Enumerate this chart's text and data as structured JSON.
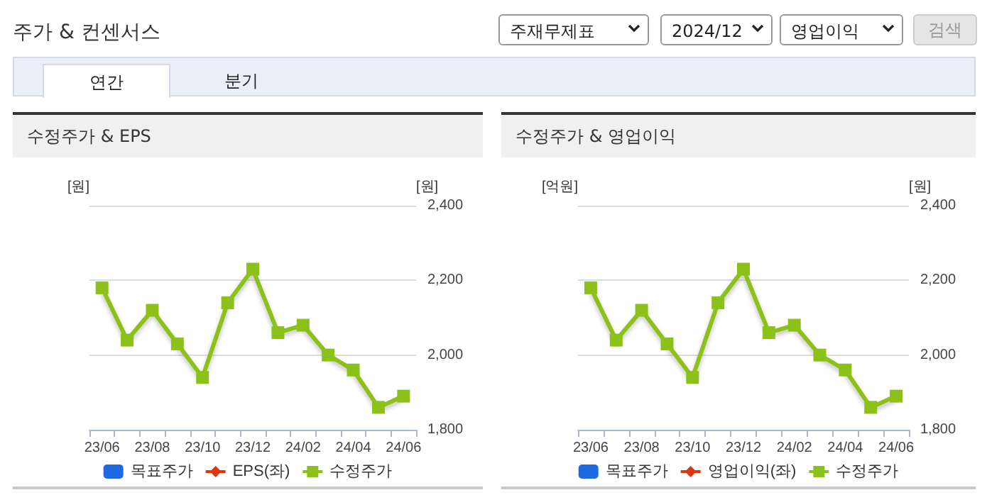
{
  "chart_data": [
    {
      "type": "other",
      "title": "주가 & 컨센서스",
      "annotations": [
        "주재무제표",
        "2024/12",
        "영업이익",
        "검색",
        "연간",
        "분기"
      ]
    },
    {
      "type": "line",
      "title": "수정주가 & EPS",
      "ylabel": "[원]",
      "y2label": "[원]",
      "categories": [
        "23/06",
        null,
        "23/08",
        null,
        "23/10",
        null,
        "23/12",
        null,
        "24/02",
        null,
        "24/04",
        null,
        "24/06"
      ],
      "y2lim": [
        1800,
        2400
      ],
      "y2ticks": [
        {
          "value": 1800,
          "label": "1,800"
        },
        {
          "value": 2000,
          "label": "2,000"
        },
        {
          "value": 2200,
          "label": "2,200"
        },
        {
          "value": 2400,
          "label": "2,400"
        }
      ],
      "grid": "y",
      "legend": "bottom",
      "marker": "square",
      "series": [
        {
          "name": "목표주가",
          "type": "bar",
          "color": "#1f6ae0",
          "axis": "y2",
          "values": [
            null,
            null,
            null,
            null,
            null,
            null,
            null,
            null,
            null,
            null,
            null,
            null,
            null
          ]
        },
        {
          "name": "EPS(좌)",
          "color": "#d9380f",
          "marker": "diamond",
          "values": [
            null,
            null,
            null,
            null,
            null,
            null,
            null,
            null,
            null,
            null,
            null,
            null,
            null
          ]
        },
        {
          "name": "수정주가",
          "color": "#8cc11a",
          "axis": "y2",
          "values": [
            2180,
            2040,
            2120,
            2030,
            1940,
            2140,
            2230,
            2060,
            2080,
            2000,
            1960,
            1860,
            1890
          ]
        }
      ]
    },
    {
      "type": "line",
      "title": "수정주가 & 영업이익",
      "ylabel": "[억원]",
      "y2label": "[원]",
      "categories": [
        "23/06",
        null,
        "23/08",
        null,
        "23/10",
        null,
        "23/12",
        null,
        "24/02",
        null,
        "24/04",
        null,
        "24/06"
      ],
      "y2lim": [
        1800,
        2400
      ],
      "y2ticks": [
        {
          "value": 1800,
          "label": "1,800"
        },
        {
          "value": 2000,
          "label": "2,000"
        },
        {
          "value": 2200,
          "label": "2,200"
        },
        {
          "value": 2400,
          "label": "2,400"
        }
      ],
      "grid": "y",
      "legend": "bottom",
      "marker": "square",
      "series": [
        {
          "name": "목표주가",
          "type": "bar",
          "color": "#1f6ae0",
          "axis": "y2",
          "values": [
            null,
            null,
            null,
            null,
            null,
            null,
            null,
            null,
            null,
            null,
            null,
            null,
            null
          ]
        },
        {
          "name": "영업이익(좌)",
          "color": "#d9380f",
          "marker": "diamond",
          "values": [
            null,
            null,
            null,
            null,
            null,
            null,
            null,
            null,
            null,
            null,
            null,
            null,
            null
          ]
        },
        {
          "name": "수정주가",
          "color": "#8cc11a",
          "axis": "y2",
          "values": [
            2180,
            2040,
            2120,
            2030,
            1940,
            2140,
            2230,
            2060,
            2080,
            2000,
            1960,
            1860,
            1890
          ]
        }
      ]
    }
  ]
}
